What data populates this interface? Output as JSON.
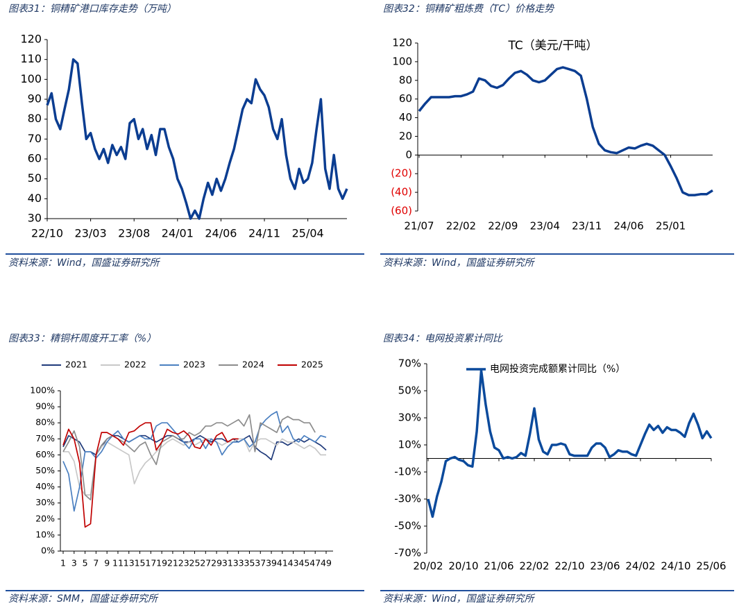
{
  "chart_data": [
    {
      "type": "line",
      "title": "图表31：铜精矿港口库存走势（万吨）",
      "source": "资料来源：Wind，国盛证券研究所",
      "categories": [
        "22/10",
        null,
        null,
        null,
        null,
        null,
        null,
        null,
        null,
        null,
        "23/03",
        null,
        null,
        null,
        null,
        null,
        null,
        null,
        null,
        null,
        "23/08",
        null,
        null,
        null,
        null,
        null,
        null,
        null,
        null,
        null,
        "24/01",
        null,
        null,
        null,
        null,
        null,
        null,
        null,
        null,
        null,
        "24/06",
        null,
        null,
        null,
        null,
        null,
        null,
        null,
        null,
        null,
        "24/11",
        null,
        null,
        null,
        null,
        null,
        null,
        null,
        null,
        null,
        "25/04",
        null,
        null,
        null,
        null,
        null,
        null,
        null,
        null,
        null
      ],
      "series": [
        {
          "color": "#0b3d91",
          "values": [
            87,
            93,
            80,
            75,
            85,
            95,
            110,
            108,
            88,
            70,
            73,
            65,
            60,
            65,
            58,
            67,
            62,
            66,
            60,
            78,
            80,
            70,
            75,
            65,
            72,
            62,
            75,
            75,
            66,
            60,
            50,
            45,
            38,
            30,
            34,
            30,
            40,
            48,
            42,
            50,
            44,
            50,
            58,
            65,
            75,
            85,
            90,
            88,
            100,
            95,
            92,
            86,
            75,
            70,
            80,
            62,
            50,
            45,
            55,
            48,
            50,
            58,
            75,
            90,
            55,
            45,
            62,
            45,
            40,
            45
          ]
        }
      ],
      "ylim": [
        30,
        120
      ],
      "yticks": [
        30,
        40,
        50,
        60,
        70,
        80,
        90,
        100,
        110,
        120
      ]
    },
    {
      "type": "line",
      "title": "图表32：铜精矿粗炼费（TC）价格走势",
      "source": "资料来源：Wind，国盛证券研究所",
      "annotation": "TC（美元/干吨）",
      "categories": [
        "21/07",
        null,
        null,
        null,
        null,
        null,
        null,
        "22/02",
        null,
        null,
        null,
        null,
        null,
        null,
        "22/09",
        null,
        null,
        null,
        null,
        null,
        null,
        "23/04",
        null,
        null,
        null,
        null,
        null,
        null,
        "23/11",
        null,
        null,
        null,
        null,
        null,
        null,
        "24/06",
        null,
        null,
        null,
        null,
        null,
        null,
        "25/01",
        null,
        null,
        null,
        null,
        null,
        null,
        null
      ],
      "series": [
        {
          "color": "#0b3d91",
          "values": [
            47,
            55,
            62,
            62,
            62,
            62,
            63,
            63,
            65,
            68,
            82,
            80,
            74,
            72,
            75,
            82,
            88,
            90,
            86,
            80,
            78,
            80,
            86,
            92,
            94,
            92,
            90,
            85,
            60,
            30,
            12,
            5,
            3,
            2,
            5,
            8,
            7,
            10,
            12,
            10,
            5,
            0,
            -12,
            -25,
            -40,
            -43,
            -43,
            -42,
            -42,
            -38
          ]
        }
      ],
      "ylim": [
        -60,
        120
      ],
      "yticks": [
        {
          "value": -60,
          "label": "(60)"
        },
        {
          "value": -40,
          "label": "(40)"
        },
        {
          "value": -20,
          "label": "(20)"
        },
        0,
        20,
        40,
        60,
        80,
        100,
        120
      ],
      "negative_tick_color": "#e00000",
      "axis_at_zero": true
    },
    {
      "type": "line",
      "title": "图表33：精铜杆周度开工率（%）",
      "source": "资料来源：SMM，国盛证券研究所",
      "legend": "top",
      "categories": [
        1,
        null,
        3,
        null,
        5,
        null,
        7,
        null,
        9,
        null,
        11,
        null,
        13,
        null,
        15,
        null,
        17,
        null,
        19,
        null,
        21,
        null,
        23,
        null,
        25,
        null,
        27,
        null,
        29,
        null,
        31,
        null,
        33,
        null,
        35,
        null,
        37,
        null,
        39,
        null,
        41,
        null,
        43,
        null,
        45,
        null,
        47,
        null,
        49
      ],
      "series": [
        {
          "name": "2021",
          "color": "#1f3a7a",
          "values": [
            65,
            72,
            70,
            68,
            62,
            62,
            60,
            65,
            70,
            72,
            72,
            70,
            68,
            70,
            72,
            72,
            70,
            68,
            70,
            72,
            72,
            70,
            68,
            68,
            70,
            72,
            70,
            68,
            70,
            70,
            68,
            70,
            68,
            70,
            72,
            65,
            62,
            60,
            57,
            68,
            68,
            66,
            68,
            70,
            68,
            70,
            68,
            66,
            63
          ]
        },
        {
          "name": "2022",
          "color": "#c8c8c8",
          "values": [
            62,
            62,
            56,
            40,
            35,
            35,
            60,
            65,
            68,
            66,
            64,
            62,
            60,
            42,
            50,
            55,
            58,
            62,
            65,
            68,
            70,
            68,
            66,
            68,
            66,
            68,
            70,
            70,
            68,
            66,
            68,
            68,
            70,
            70,
            62,
            68,
            70,
            70,
            68,
            66,
            70,
            68,
            68,
            66,
            64,
            66,
            64,
            60,
            60
          ]
        },
        {
          "name": "2023",
          "color": "#4a7fc0",
          "values": [
            56,
            48,
            25,
            40,
            62,
            62,
            58,
            62,
            68,
            72,
            75,
            70,
            68,
            70,
            72,
            70,
            70,
            78,
            80,
            80,
            76,
            72,
            68,
            64,
            70,
            70,
            64,
            70,
            68,
            60,
            65,
            68,
            68,
            70,
            65,
            68,
            78,
            82,
            85,
            87,
            74,
            78,
            70,
            68,
            72,
            70,
            68,
            72,
            71
          ]
        },
        {
          "name": "2024",
          "color": "#8c8c8c",
          "values": [
            62,
            68,
            75,
            65,
            35,
            32,
            60,
            66,
            70,
            72,
            70,
            68,
            65,
            62,
            66,
            68,
            60,
            54,
            68,
            70,
            72,
            70,
            70,
            74,
            72,
            74,
            78,
            78,
            80,
            80,
            78,
            80,
            82,
            78,
            85,
            62,
            80,
            78,
            76,
            74,
            82,
            84,
            82,
            82,
            80,
            80,
            74,
            null,
            null
          ]
        },
        {
          "name": "2025",
          "color": "#c00000",
          "values": [
            66,
            76,
            70,
            55,
            15,
            17,
            60,
            74,
            74,
            72,
            70,
            66,
            74,
            75,
            78,
            80,
            80,
            63,
            68,
            76,
            74,
            73,
            75,
            72,
            65,
            64,
            70,
            66,
            72,
            74,
            68,
            70,
            70,
            null,
            null,
            null,
            null,
            null,
            null,
            null,
            null,
            null,
            null,
            null,
            null,
            null,
            null,
            null,
            null
          ]
        }
      ],
      "ylim": [
        0,
        100
      ],
      "yticks": [
        {
          "value": 0,
          "label": "0%"
        },
        {
          "value": 10,
          "label": "10%"
        },
        {
          "value": 20,
          "label": "20%"
        },
        {
          "value": 30,
          "label": "30%"
        },
        {
          "value": 40,
          "label": "40%"
        },
        {
          "value": 50,
          "label": "50%"
        },
        {
          "value": 60,
          "label": "60%"
        },
        {
          "value": 70,
          "label": "70%"
        },
        {
          "value": 80,
          "label": "80%"
        },
        {
          "value": 90,
          "label": "90%"
        },
        {
          "value": 100,
          "label": "100%"
        }
      ]
    },
    {
      "type": "line",
      "title": "图表34：电网投资累计同比",
      "source": "资料来源：Wind，国盛证券研究所",
      "legend": "inside-top",
      "categories": [
        "20/02",
        null,
        null,
        null,
        null,
        null,
        null,
        null,
        "20/10",
        null,
        null,
        null,
        null,
        null,
        null,
        null,
        "21/06",
        null,
        null,
        null,
        null,
        null,
        null,
        null,
        "22/02",
        null,
        null,
        null,
        null,
        null,
        null,
        null,
        "22/10",
        null,
        null,
        null,
        null,
        null,
        null,
        null,
        "23/06",
        null,
        null,
        null,
        null,
        null,
        null,
        null,
        "24/02",
        null,
        null,
        null,
        null,
        null,
        null,
        null,
        "24/10",
        null,
        null,
        null,
        null,
        null,
        null,
        null,
        "25/06"
      ],
      "series": [
        {
          "name": "电网投资完成额累计同比（%）",
          "color": "#0b4a9c",
          "values": [
            -30,
            -43,
            -28,
            -17,
            -2,
            0,
            1,
            -1,
            -2,
            -5,
            -6,
            20,
            65,
            40,
            20,
            8,
            6,
            0,
            1,
            0,
            1,
            4,
            2,
            18,
            37,
            14,
            5,
            3,
            10,
            10,
            11,
            10,
            3,
            2,
            2,
            2,
            2,
            8,
            11,
            11,
            8,
            1,
            3,
            6,
            5,
            5,
            3,
            2,
            10,
            18,
            25,
            21,
            24,
            19,
            23,
            21,
            21,
            19,
            16,
            26,
            33,
            25,
            15,
            20,
            15
          ]
        }
      ],
      "ylim": [
        -70,
        70
      ],
      "yticks": [
        {
          "value": -70,
          "label": "-70%"
        },
        {
          "value": -50,
          "label": "-50%"
        },
        {
          "value": -30,
          "label": "-30%"
        },
        {
          "value": -10,
          "label": "-10%"
        },
        {
          "value": 10,
          "label": "10%"
        },
        {
          "value": 30,
          "label": "30%"
        },
        {
          "value": 50,
          "label": "50%"
        },
        {
          "value": 70,
          "label": "70%"
        }
      ],
      "axis_at_zero": true
    }
  ]
}
